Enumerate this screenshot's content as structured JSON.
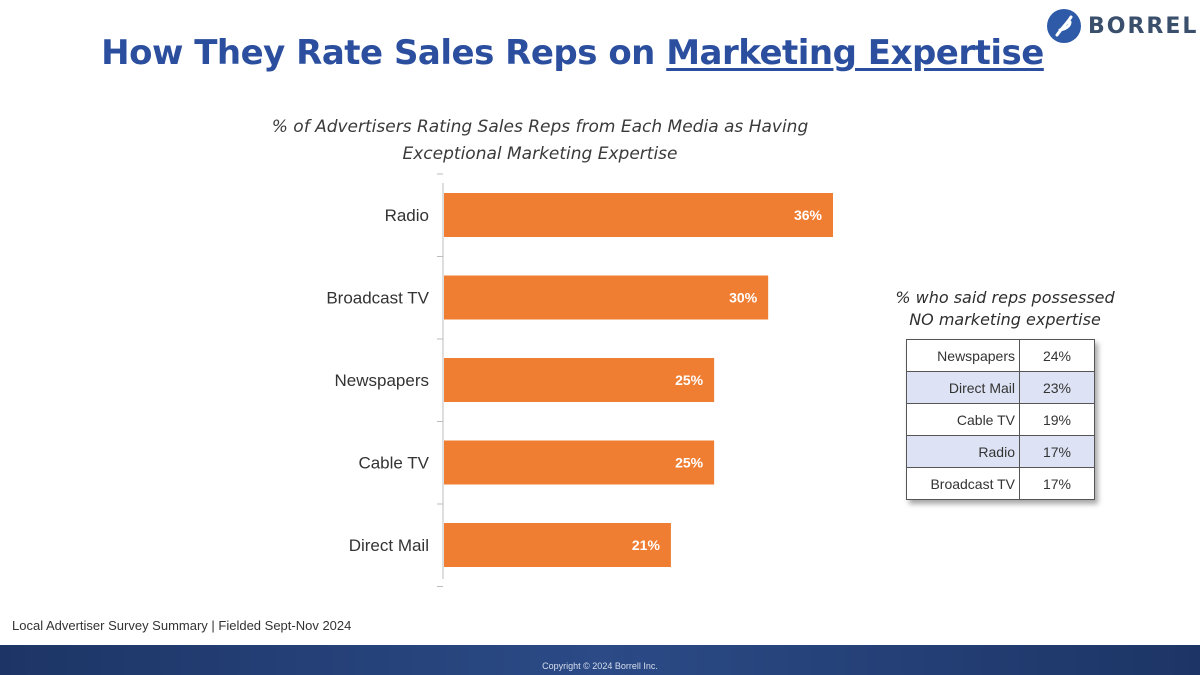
{
  "brand": {
    "name": "BORRELL"
  },
  "header": {
    "title_prefix": "How They Rate Sales Reps on ",
    "title_emphasis": "Marketing Expertise"
  },
  "chart_data": {
    "type": "bar",
    "orientation": "horizontal",
    "title_line1": "% of Advertisers Rating Sales Reps from Each Media as Having",
    "title_line2": "Exceptional Marketing Expertise",
    "categories": [
      "Radio",
      "Broadcast TV",
      "Newspapers",
      "Cable TV",
      "Direct Mail"
    ],
    "values": [
      36,
      30,
      25,
      25,
      21
    ],
    "value_labels": [
      "36%",
      "30%",
      "25%",
      "25%",
      "21%"
    ],
    "xlim": [
      0,
      40
    ],
    "bar_color": "#ef7d32",
    "grid": false,
    "legend": "none"
  },
  "side_table": {
    "title_line1": "% who said reps possessed",
    "title_line2": "NO marketing expertise",
    "rows": [
      {
        "label": "Newspapers",
        "value": "24%"
      },
      {
        "label": "Direct Mail",
        "value": "23%"
      },
      {
        "label": "Cable TV",
        "value": "19%"
      },
      {
        "label": "Radio",
        "value": "17%"
      },
      {
        "label": "Broadcast TV",
        "value": "17%"
      }
    ]
  },
  "footer": {
    "note": "Local Advertiser Survey Summary  | Fielded Sept-Nov 2024",
    "copyright": "Copyright © 2024 Borrell Inc."
  },
  "colors": {
    "title": "#2b4f9e",
    "footer_bar": "#1d3566",
    "table_alt_row": "#dde3f4"
  }
}
